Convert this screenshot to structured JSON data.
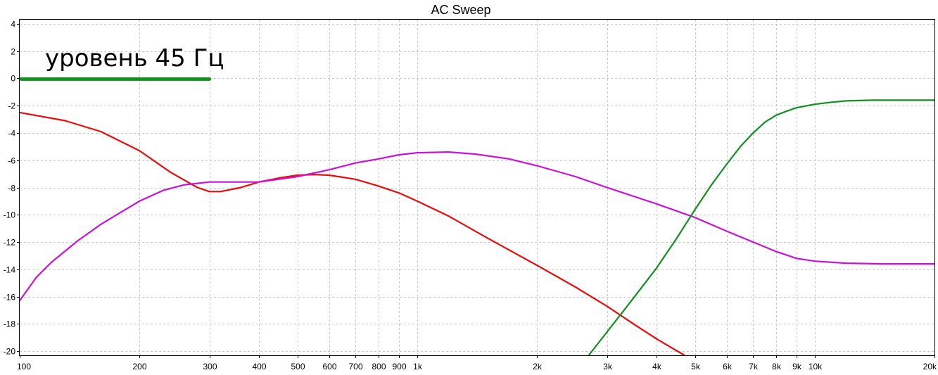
{
  "chart_data": {
    "type": "line",
    "title": "AC Sweep",
    "xscale": "log",
    "xlim": [
      100,
      20000
    ],
    "ylim": [
      -20.3,
      4.3
    ],
    "grid": true,
    "x_ticks": [
      {
        "value": 100,
        "label": "100"
      },
      {
        "value": 200,
        "label": "200"
      },
      {
        "value": 300,
        "label": "300"
      },
      {
        "value": 400,
        "label": "400"
      },
      {
        "value": 500,
        "label": "500"
      },
      {
        "value": 600,
        "label": "600"
      },
      {
        "value": 700,
        "label": "700"
      },
      {
        "value": 800,
        "label": "800"
      },
      {
        "value": 900,
        "label": "900"
      },
      {
        "value": 1000,
        "label": "1k"
      },
      {
        "value": 2000,
        "label": "2k"
      },
      {
        "value": 3000,
        "label": "3k"
      },
      {
        "value": 4000,
        "label": "4k"
      },
      {
        "value": 5000,
        "label": "5k"
      },
      {
        "value": 6000,
        "label": "6k"
      },
      {
        "value": 7000,
        "label": "7k"
      },
      {
        "value": 8000,
        "label": "8k"
      },
      {
        "value": 9000,
        "label": "9k"
      },
      {
        "value": 10000,
        "label": "10k"
      },
      {
        "value": 20000,
        "label": "20k"
      }
    ],
    "y_ticks": [
      {
        "value": 4,
        "label": "4"
      },
      {
        "value": 2,
        "label": "2"
      },
      {
        "value": 0,
        "label": "0"
      },
      {
        "value": -2,
        "label": "-2"
      },
      {
        "value": -4,
        "label": "-4"
      },
      {
        "value": -6,
        "label": "-6"
      },
      {
        "value": -8,
        "label": "-8"
      },
      {
        "value": -10,
        "label": "-10"
      },
      {
        "value": -12,
        "label": "-12"
      },
      {
        "value": -14,
        "label": "-14"
      },
      {
        "value": -16,
        "label": "-16"
      },
      {
        "value": -18,
        "label": "-18"
      },
      {
        "value": -20,
        "label": "-20"
      }
    ],
    "annotations": [
      {
        "text": "уровень 45 Гц",
        "color": "#119020",
        "x_start": 100,
        "x_end": 300,
        "level": 0
      }
    ],
    "series": [
      {
        "color": "#e80c0c",
        "x": [
          100,
          130,
          160,
          200,
          240,
          280,
          300,
          320,
          360,
          400,
          450,
          500,
          550,
          600,
          650,
          700,
          800,
          900,
          1000,
          1200,
          1500,
          2000,
          2500,
          3000,
          3500,
          4000,
          4700
        ],
        "y": [
          -2.5,
          -3.1,
          -3.9,
          -5.3,
          -6.9,
          -8.0,
          -8.3,
          -8.3,
          -8.0,
          -7.6,
          -7.3,
          -7.1,
          -7.05,
          -7.1,
          -7.25,
          -7.4,
          -7.9,
          -8.4,
          -9.0,
          -10.1,
          -11.7,
          -13.7,
          -15.3,
          -16.7,
          -18.0,
          -19.1,
          -20.3
        ]
      },
      {
        "color": "#c812d8",
        "x": [
          100,
          110,
          120,
          140,
          160,
          180,
          200,
          230,
          260,
          300,
          350,
          400,
          500,
          600,
          700,
          800,
          900,
          1000,
          1200,
          1400,
          1700,
          2000,
          2500,
          3000,
          4000,
          5000,
          6000,
          7000,
          8000,
          9000,
          10000,
          12000,
          15000,
          20000
        ],
        "y": [
          -16.3,
          -14.6,
          -13.5,
          -11.9,
          -10.7,
          -9.8,
          -9.0,
          -8.2,
          -7.8,
          -7.6,
          -7.6,
          -7.6,
          -7.2,
          -6.7,
          -6.2,
          -5.9,
          -5.6,
          -5.45,
          -5.4,
          -5.55,
          -5.9,
          -6.4,
          -7.2,
          -8.0,
          -9.2,
          -10.2,
          -11.2,
          -12.0,
          -12.7,
          -13.2,
          -13.4,
          -13.55,
          -13.6,
          -13.6
        ]
      },
      {
        "color": "#119020",
        "x": [
          2700,
          3000,
          3500,
          4000,
          4500,
          5000,
          5500,
          6000,
          6500,
          7000,
          7500,
          8000,
          8500,
          9000,
          10000,
          11000,
          12000,
          14000,
          17000,
          20000
        ],
        "y": [
          -20.3,
          -18.6,
          -16.1,
          -13.9,
          -11.7,
          -9.6,
          -7.8,
          -6.3,
          -5.0,
          -4.0,
          -3.2,
          -2.7,
          -2.4,
          -2.15,
          -1.9,
          -1.75,
          -1.65,
          -1.6,
          -1.6,
          -1.6
        ]
      }
    ]
  }
}
